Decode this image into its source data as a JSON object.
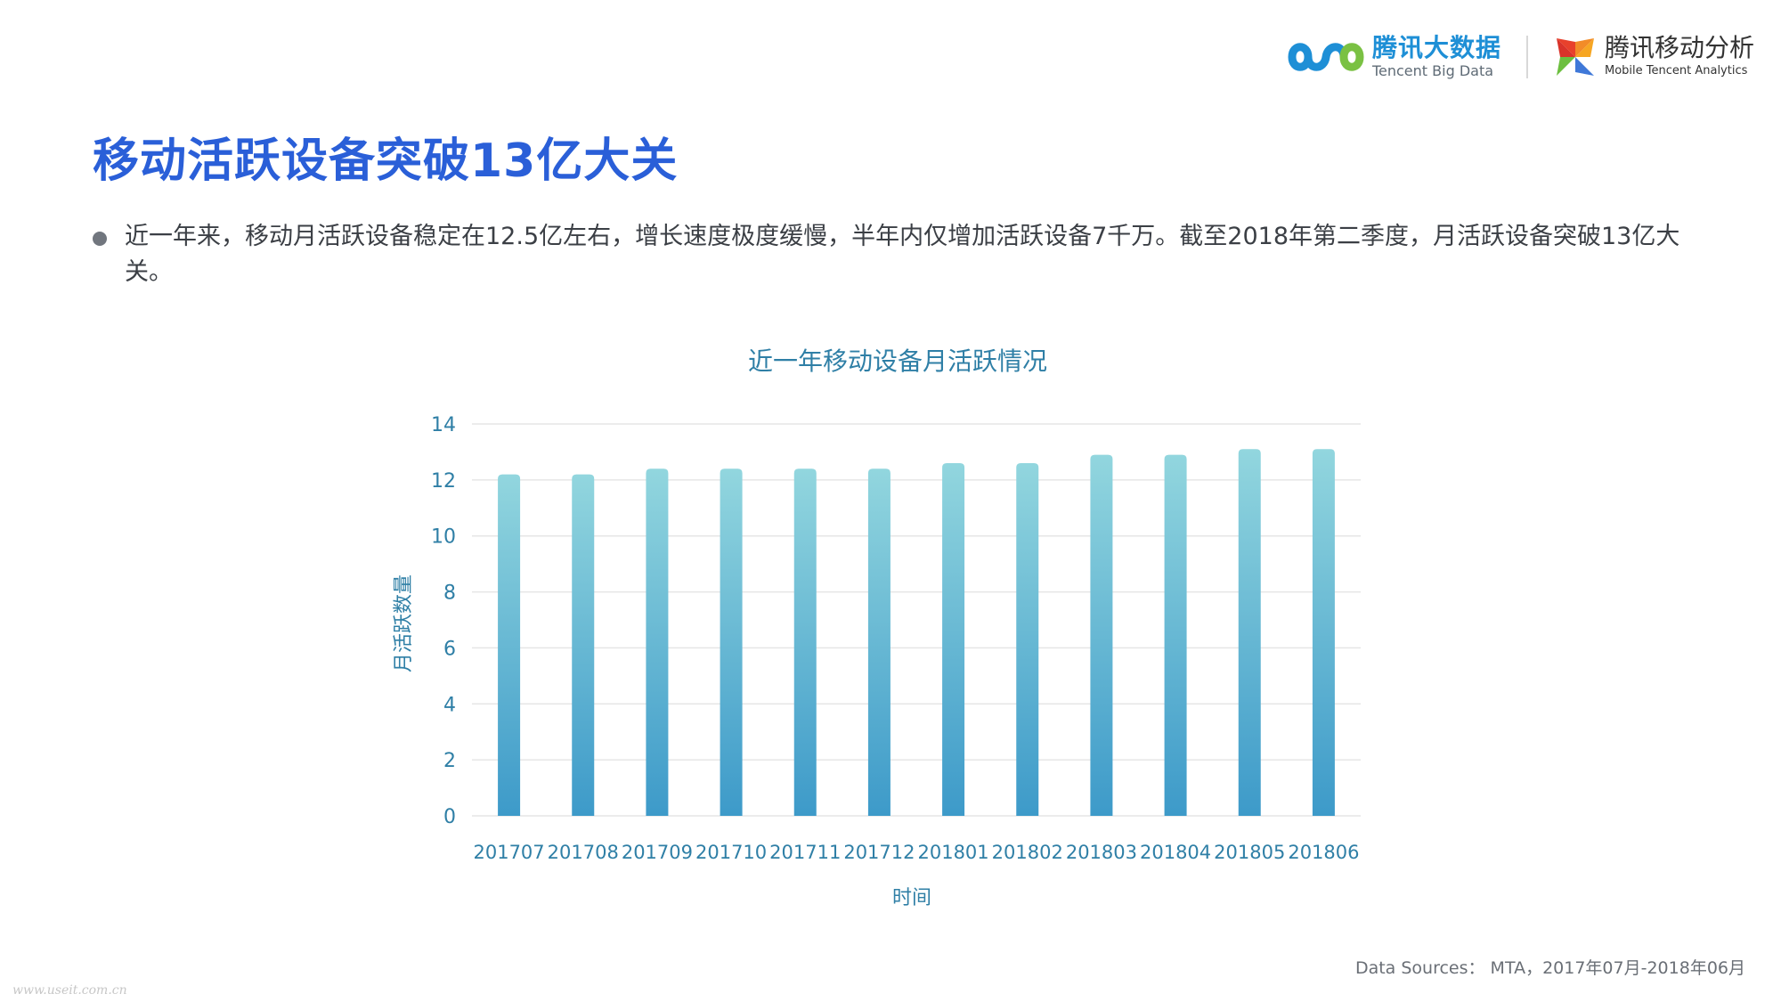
{
  "logos": {
    "tencent_big_data": {
      "cn": "腾讯大数据",
      "en": "Tencent Big Data"
    },
    "tencent_mta": {
      "cn": "腾讯移动分析",
      "en": "Mobile Tencent Analytics"
    }
  },
  "title": "移动活跃设备突破13亿大关",
  "bullet": "近一年来，移动月活跃设备稳定在12.5亿左右，增长速度极度缓慢，半年内仅增加活跃设备7千万。截至2018年第二季度，月活跃设备突破13亿大关。",
  "source": "Data Sources： MTA，2017年07月-2018年06月",
  "watermark": "www.useit.com.cn",
  "colors": {
    "title": "#2a5fd8",
    "axis_text": "#2f7fa6",
    "bar_top": "#92d6de",
    "bar_bottom": "#3d9ac9"
  },
  "chart_data": {
    "type": "bar",
    "title": "近一年移动设备月活跃情况",
    "xlabel": "时间",
    "ylabel": "月活跃数量",
    "ylim": [
      0,
      14
    ],
    "yticks": [
      0,
      2,
      4,
      6,
      8,
      10,
      12,
      14
    ],
    "grid": true,
    "categories": [
      "201707",
      "201708",
      "201709",
      "201710",
      "201711",
      "201712",
      "201801",
      "201802",
      "201803",
      "201804",
      "201805",
      "201806"
    ],
    "values": [
      12.2,
      12.2,
      12.4,
      12.4,
      12.4,
      12.4,
      12.6,
      12.6,
      12.9,
      12.9,
      13.1,
      13.1
    ]
  }
}
